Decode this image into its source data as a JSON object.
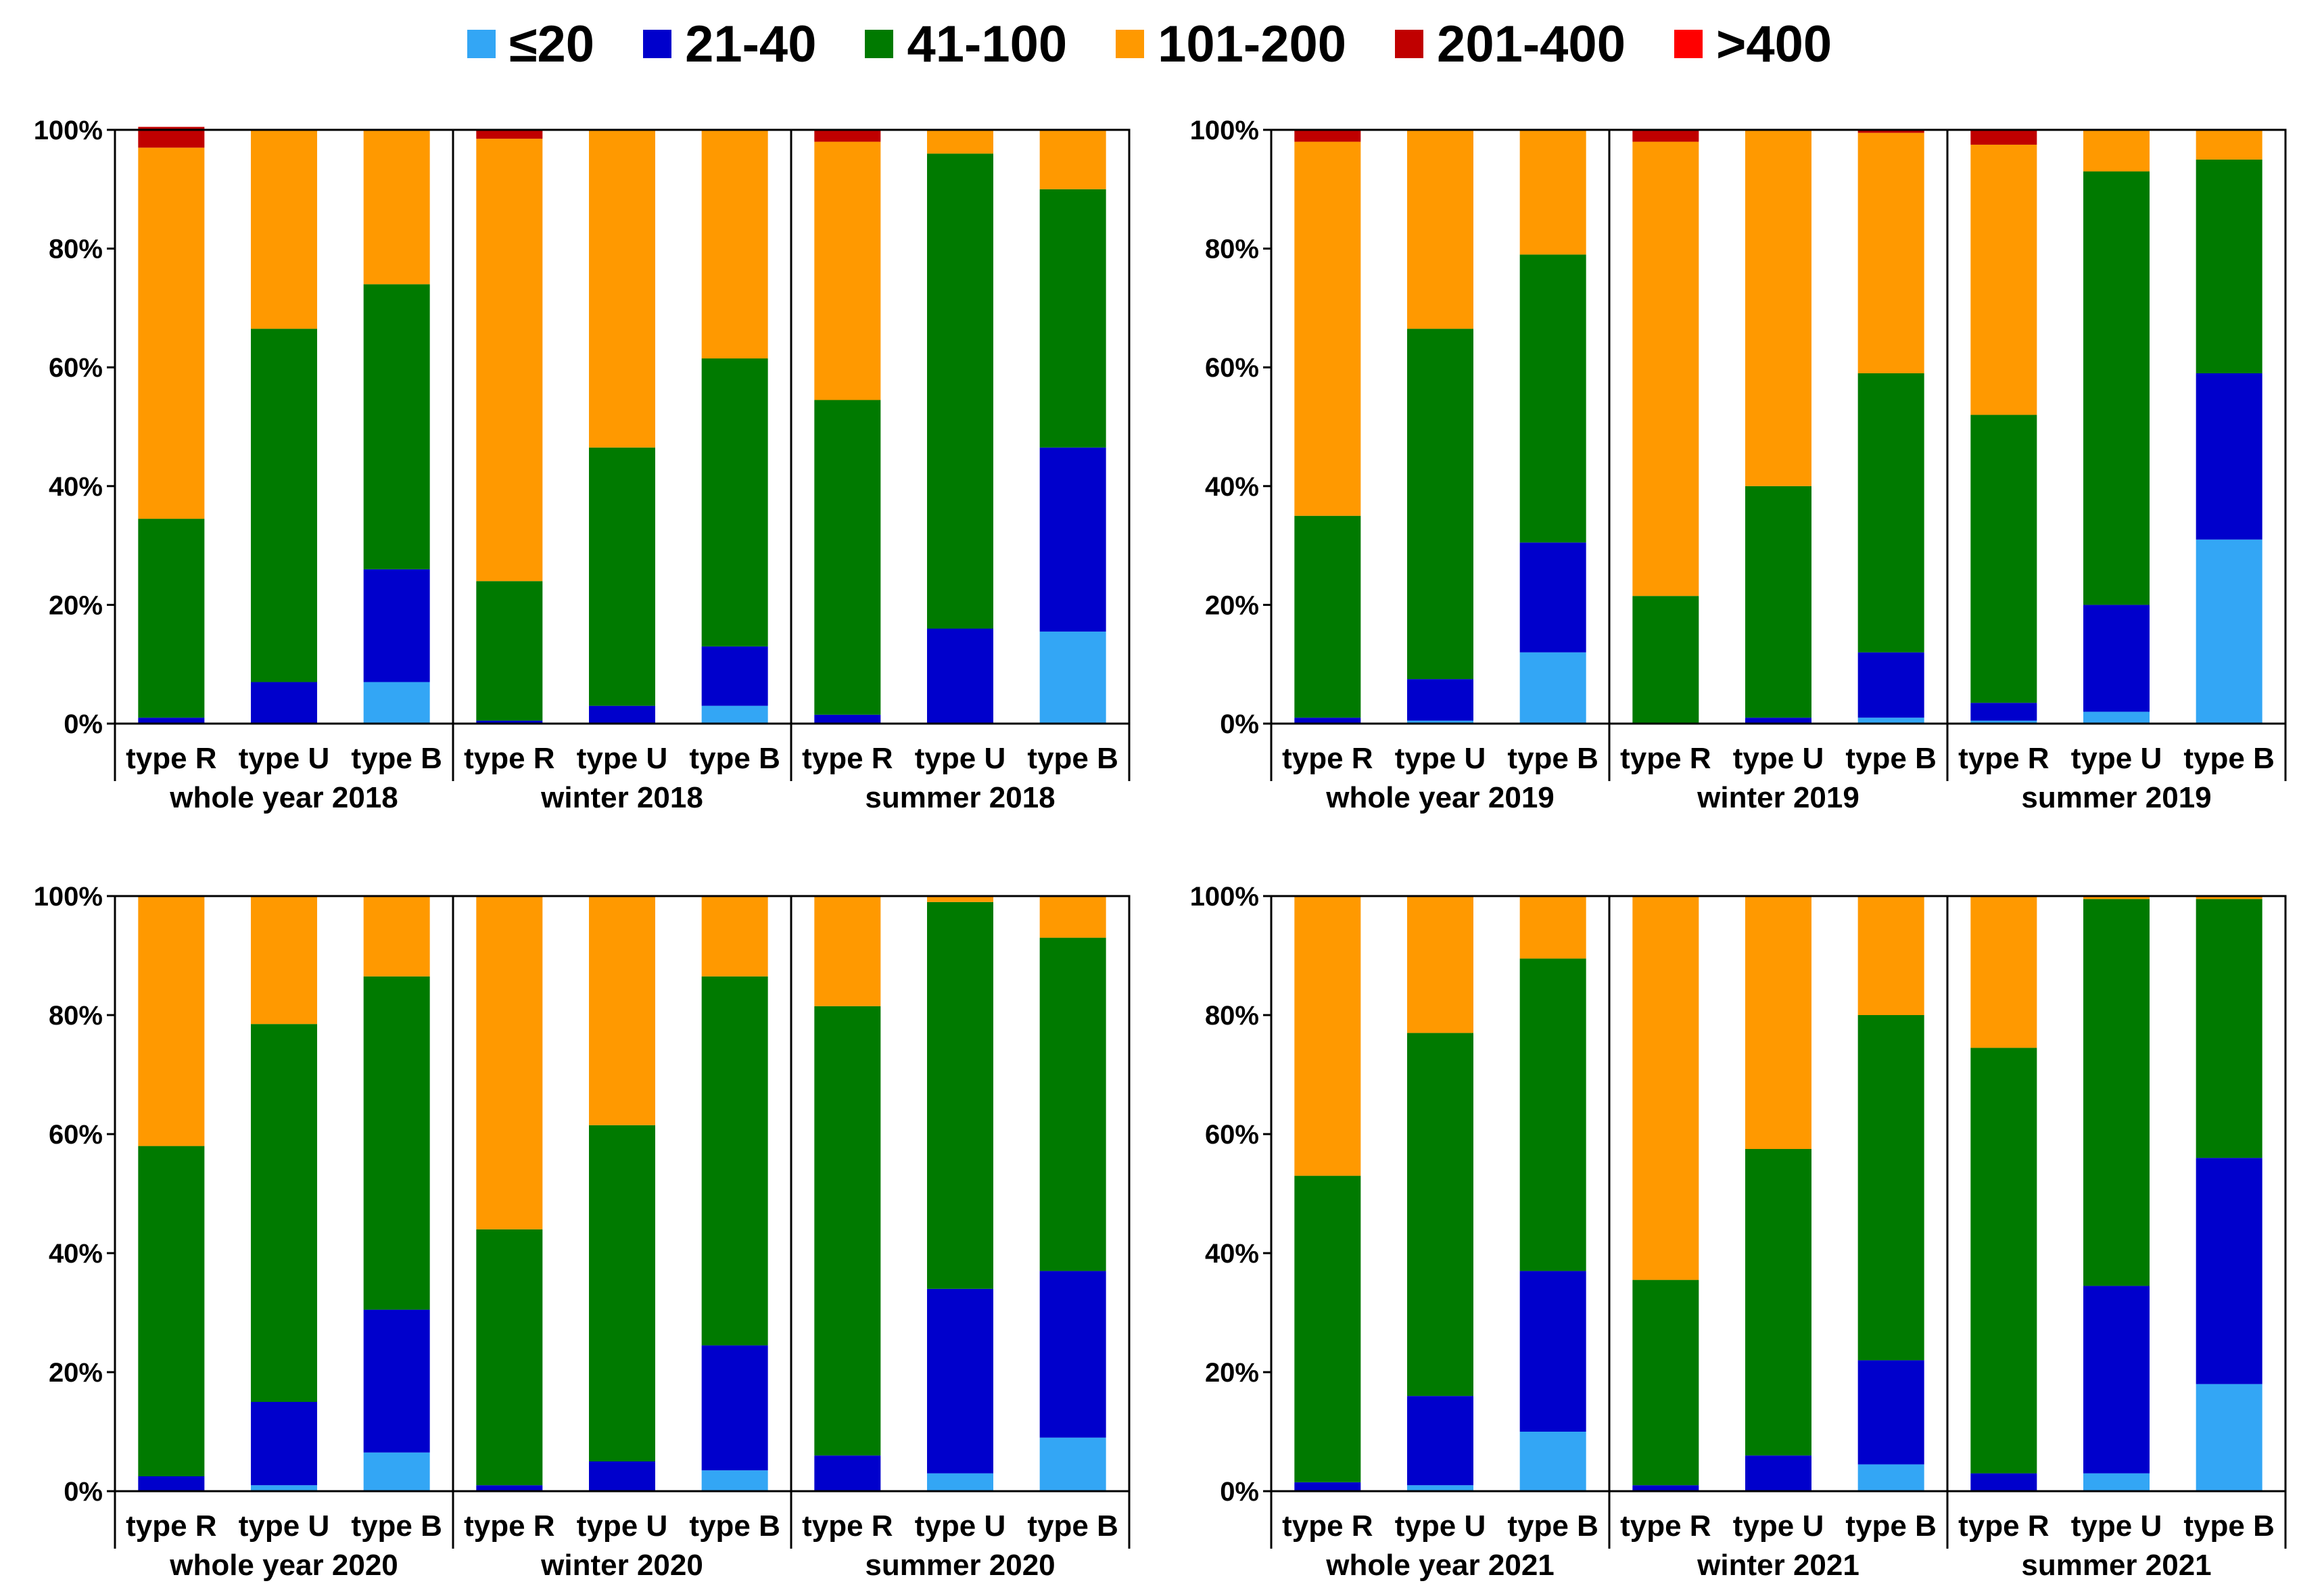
{
  "legend": [
    {
      "label": "≤20",
      "color": "#33A6F5"
    },
    {
      "label": "21-40",
      "color": "#0000CC"
    },
    {
      "label": "41-100",
      "color": "#007A00"
    },
    {
      "label": "101-200",
      "color": "#FF9900"
    },
    {
      "label": "201-400",
      "color": "#C00000"
    },
    {
      "label": ">400",
      "color": "#FF0000"
    }
  ],
  "chart_data": [
    {
      "type": "bar",
      "stacked": true,
      "year": "2018",
      "ylim": [
        0,
        100
      ],
      "yticks": [
        "0%",
        "20%",
        "40%",
        "60%",
        "80%",
        "100%"
      ],
      "groups": [
        {
          "label": "whole year 2018",
          "bars": [
            {
              "label": "type R",
              "values": [
                0,
                1,
                33.5,
                62.5,
                3.5,
                0
              ]
            },
            {
              "label": "type U",
              "values": [
                0,
                7,
                59.5,
                33.5,
                0,
                0
              ]
            },
            {
              "label": "type B",
              "values": [
                7,
                19,
                48,
                26,
                0,
                0
              ]
            }
          ]
        },
        {
          "label": "winter 2018",
          "bars": [
            {
              "label": "type R",
              "values": [
                0,
                0.5,
                23.5,
                74.5,
                1.5,
                0
              ]
            },
            {
              "label": "type U",
              "values": [
                0,
                3,
                43.5,
                53.5,
                0,
                0
              ]
            },
            {
              "label": "type B",
              "values": [
                3,
                10,
                48.5,
                38.5,
                0,
                0
              ]
            }
          ]
        },
        {
          "label": "summer 2018",
          "bars": [
            {
              "label": "type R",
              "values": [
                0,
                1.5,
                53,
                43.5,
                2,
                0
              ]
            },
            {
              "label": "type U",
              "values": [
                0,
                16,
                80,
                4,
                0,
                0
              ]
            },
            {
              "label": "type B",
              "values": [
                15.5,
                31,
                43.5,
                10,
                0,
                0
              ]
            }
          ]
        }
      ]
    },
    {
      "type": "bar",
      "stacked": true,
      "year": "2019",
      "ylim": [
        0,
        100
      ],
      "yticks": [
        "0%",
        "20%",
        "40%",
        "60%",
        "80%",
        "100%"
      ],
      "groups": [
        {
          "label": "whole year 2019",
          "bars": [
            {
              "label": "type R",
              "values": [
                0,
                1,
                34,
                63,
                2,
                0
              ]
            },
            {
              "label": "type U",
              "values": [
                0.5,
                7,
                59,
                33.5,
                0,
                0
              ]
            },
            {
              "label": "type B",
              "values": [
                12,
                18.5,
                48.5,
                21,
                0,
                0
              ]
            }
          ]
        },
        {
          "label": "winter 2019",
          "bars": [
            {
              "label": "type R",
              "values": [
                0,
                0,
                21.5,
                76.5,
                2,
                0
              ]
            },
            {
              "label": "type U",
              "values": [
                0,
                1,
                39,
                60,
                0,
                0
              ]
            },
            {
              "label": "type B",
              "values": [
                1,
                11,
                47,
                40.5,
                0.5,
                0
              ]
            }
          ]
        },
        {
          "label": "summer 2019",
          "bars": [
            {
              "label": "type R",
              "values": [
                0.5,
                3,
                48.5,
                45.5,
                2.5,
                0
              ]
            },
            {
              "label": "type U",
              "values": [
                2,
                18,
                73,
                7,
                0,
                0
              ]
            },
            {
              "label": "type B",
              "values": [
                31,
                28,
                36,
                5,
                0,
                0
              ]
            }
          ]
        }
      ]
    },
    {
      "type": "bar",
      "stacked": true,
      "year": "2020",
      "ylim": [
        0,
        100
      ],
      "yticks": [
        "0%",
        "20%",
        "40%",
        "60%",
        "80%",
        "100%"
      ],
      "groups": [
        {
          "label": "whole year 2020",
          "bars": [
            {
              "label": "type R",
              "values": [
                0,
                2.5,
                55.5,
                42,
                0,
                0
              ]
            },
            {
              "label": "type U",
              "values": [
                1,
                14,
                63.5,
                21.5,
                0,
                0
              ]
            },
            {
              "label": "type B",
              "values": [
                6.5,
                24,
                56,
                13.5,
                0,
                0
              ]
            }
          ]
        },
        {
          "label": "winter 2020",
          "bars": [
            {
              "label": "type R",
              "values": [
                0,
                1,
                43,
                56,
                0,
                0
              ]
            },
            {
              "label": "type U",
              "values": [
                0,
                5,
                56.5,
                38.5,
                0,
                0
              ]
            },
            {
              "label": "type B",
              "values": [
                3.5,
                21,
                62,
                13.5,
                0,
                0
              ]
            }
          ]
        },
        {
          "label": "summer 2020",
          "bars": [
            {
              "label": "type R",
              "values": [
                0,
                6,
                75.5,
                18.5,
                0,
                0
              ]
            },
            {
              "label": "type U",
              "values": [
                3,
                31,
                65,
                1,
                0,
                0
              ]
            },
            {
              "label": "type B",
              "values": [
                9,
                28,
                56,
                7,
                0,
                0
              ]
            }
          ]
        }
      ]
    },
    {
      "type": "bar",
      "stacked": true,
      "year": "2021",
      "ylim": [
        0,
        100
      ],
      "yticks": [
        "0%",
        "20%",
        "40%",
        "60%",
        "80%",
        "100%"
      ],
      "groups": [
        {
          "label": "whole year 2021",
          "bars": [
            {
              "label": "type R",
              "values": [
                0,
                1.5,
                51.5,
                47,
                0,
                0
              ]
            },
            {
              "label": "type U",
              "values": [
                1,
                15,
                61,
                23,
                0,
                0
              ]
            },
            {
              "label": "type B",
              "values": [
                10,
                27,
                52.5,
                10.5,
                0,
                0
              ]
            }
          ]
        },
        {
          "label": "winter 2021",
          "bars": [
            {
              "label": "type R",
              "values": [
                0,
                1,
                34.5,
                64.5,
                0,
                0
              ]
            },
            {
              "label": "type U",
              "values": [
                0,
                6,
                51.5,
                42.5,
                0,
                0
              ]
            },
            {
              "label": "type B",
              "values": [
                4.5,
                17.5,
                58,
                20,
                0,
                0
              ]
            }
          ]
        },
        {
          "label": "summer 2021",
          "bars": [
            {
              "label": "type R",
              "values": [
                0,
                3,
                71.5,
                25.5,
                0,
                0
              ]
            },
            {
              "label": "type U",
              "values": [
                3,
                31.5,
                65,
                0.5,
                0,
                0
              ]
            },
            {
              "label": "type B",
              "values": [
                18,
                38,
                43.5,
                0.5,
                0,
                0
              ]
            }
          ]
        }
      ]
    }
  ]
}
